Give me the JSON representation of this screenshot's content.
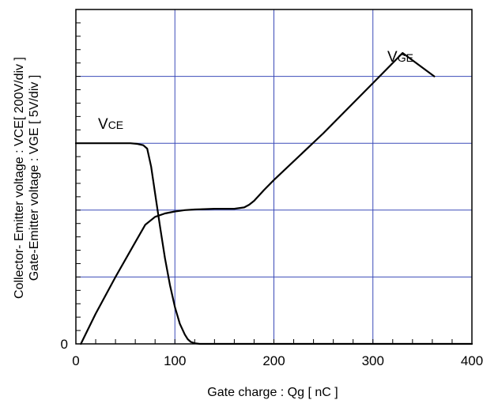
{
  "chart_data": {
    "type": "line",
    "title": "",
    "xlabel": "Gate charge : Qg [ nC ]",
    "ylabel_line1": "Collector- Emitter voltage : VCE[ 200V/div ]",
    "ylabel_line2": "Gate-Emitter voltage : VGE [ 5V/div ]",
    "xlim": [
      0,
      400
    ],
    "ylim_div": [
      0,
      5
    ],
    "x_ticks": [
      0,
      100,
      200,
      300,
      400
    ],
    "x_tick_labels": [
      "0",
      "100",
      "200",
      "300",
      "400"
    ],
    "y_tick_labels": [
      "0"
    ],
    "grid": true,
    "grid_color": "#3b4bb8",
    "series": [
      {
        "name": "VCE",
        "units_per_div": "200V/div",
        "x": [
          0,
          55,
          62,
          68,
          72,
          76,
          80,
          85,
          90,
          95,
          100,
          105,
          110,
          113,
          116,
          120,
          125,
          130,
          140,
          400
        ],
        "y_div": [
          3.0,
          3.0,
          2.99,
          2.97,
          2.92,
          2.65,
          2.25,
          1.75,
          1.28,
          0.88,
          0.55,
          0.3,
          0.14,
          0.07,
          0.03,
          0.01,
          0.0,
          0.0,
          0.0,
          0.0
        ]
      },
      {
        "name": "VGE",
        "units_per_div": "5V/div",
        "x": [
          5,
          20,
          40,
          60,
          70,
          80,
          90,
          100,
          110,
          120,
          140,
          160,
          170,
          175,
          180,
          190,
          200,
          250,
          300,
          330,
          362
        ],
        "y_div": [
          0.0,
          0.45,
          1.0,
          1.52,
          1.78,
          1.9,
          1.95,
          1.98,
          2.0,
          2.01,
          2.02,
          2.02,
          2.04,
          2.08,
          2.14,
          2.3,
          2.45,
          3.15,
          3.9,
          4.35,
          4.0
        ]
      }
    ],
    "annotations": [
      {
        "main": "V",
        "sub": "CE",
        "series": "VCE"
      },
      {
        "main": "V",
        "sub": "GE",
        "series": "VGE"
      }
    ]
  }
}
